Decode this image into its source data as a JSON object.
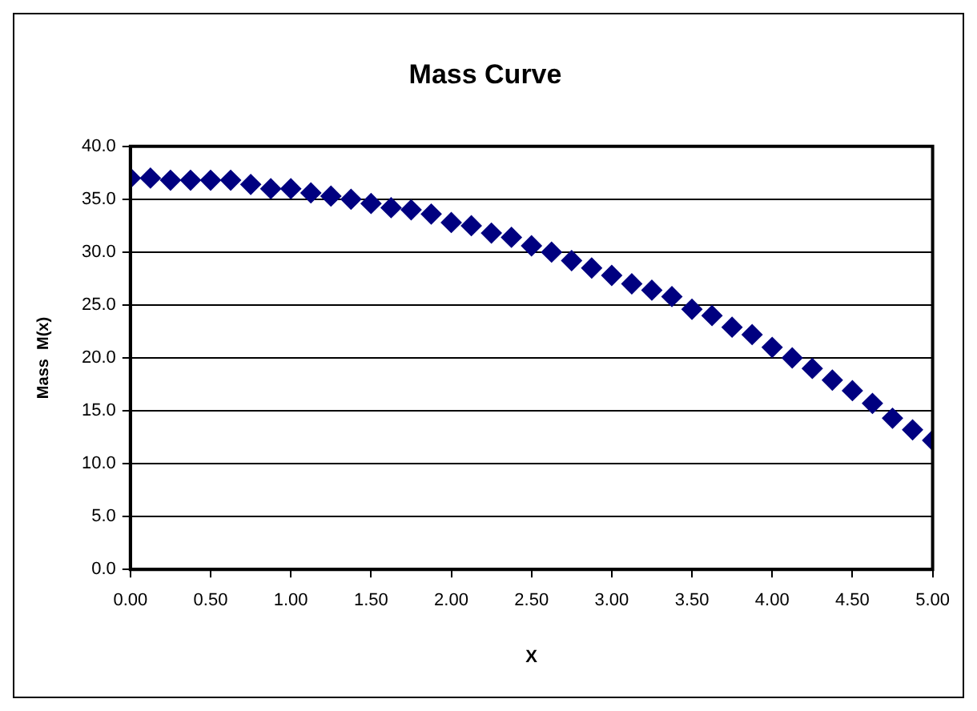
{
  "chart_data": {
    "type": "scatter",
    "title": "Mass Curve",
    "xlabel": "X",
    "ylabel": "Mass  M(x)",
    "x": [
      0,
      0.125,
      0.25,
      0.375,
      0.5,
      0.625,
      0.75,
      0.875,
      1,
      1.125,
      1.25,
      1.375,
      1.5,
      1.625,
      1.75,
      1.875,
      2,
      2.125,
      2.25,
      2.375,
      2.5,
      2.625,
      2.75,
      2.875,
      3,
      3.125,
      3.25,
      3.375,
      3.5,
      3.625,
      3.75,
      3.875,
      4,
      4.125,
      4.25,
      4.375,
      4.5,
      4.625,
      4.75,
      4.875,
      5
    ],
    "series": [
      {
        "color": "#000080",
        "values": [
          37.0,
          37.0,
          36.8,
          36.8,
          36.8,
          36.8,
          36.4,
          36.0,
          36.0,
          35.6,
          35.3,
          35.0,
          34.6,
          34.2,
          34.0,
          33.6,
          32.8,
          32.5,
          31.8,
          31.4,
          30.6,
          30.0,
          29.2,
          28.5,
          27.8,
          27.0,
          26.4,
          25.8,
          24.6,
          24.0,
          22.9,
          22.2,
          21.0,
          20.0,
          19.0,
          17.9,
          16.9,
          15.7,
          14.3,
          13.2,
          12.2
        ]
      }
    ],
    "xlim": [
      0,
      5
    ],
    "xticks": [
      {
        "value": 0,
        "label": "0.00"
      },
      {
        "value": 0.5,
        "label": "0.50"
      },
      {
        "value": 1,
        "label": "1.00"
      },
      {
        "value": 1.5,
        "label": "1.50"
      },
      {
        "value": 2,
        "label": "2.00"
      },
      {
        "value": 2.5,
        "label": "2.50"
      },
      {
        "value": 3,
        "label": "3.00"
      },
      {
        "value": 3.5,
        "label": "3.50"
      },
      {
        "value": 4,
        "label": "4.00"
      },
      {
        "value": 4.5,
        "label": "4.50"
      },
      {
        "value": 5,
        "label": "5.00"
      }
    ],
    "ylim": [
      0,
      40
    ],
    "yticks": [
      {
        "value": 0,
        "label": "0.0"
      },
      {
        "value": 5,
        "label": "5.0"
      },
      {
        "value": 10,
        "label": "10.0"
      },
      {
        "value": 15,
        "label": "15.0"
      },
      {
        "value": 20,
        "label": "20.0"
      },
      {
        "value": 25,
        "label": "25.0"
      },
      {
        "value": 30,
        "label": "30.0"
      },
      {
        "value": 35,
        "label": "35.0"
      },
      {
        "value": 40,
        "label": "40.0"
      }
    ],
    "grid": "y",
    "legend": false,
    "marker": "diamond"
  }
}
